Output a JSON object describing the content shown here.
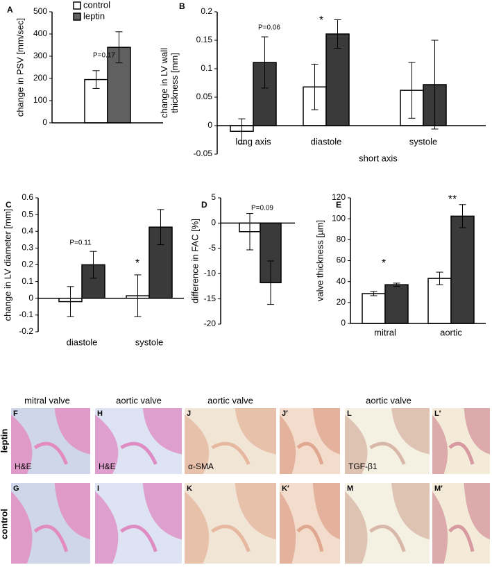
{
  "chart_data": [
    {
      "type": "bar",
      "letter": "A",
      "ytitle": [
        "change in PSV [mm/sec]"
      ],
      "categories": [
        null
      ],
      "series": [
        {
          "name": "control",
          "color": "#ffffff",
          "values": [
            195
          ],
          "errors": [
            40
          ]
        },
        {
          "name": "leptin",
          "color": "#606060",
          "values": [
            340
          ],
          "errors": [
            70
          ]
        }
      ],
      "ylim": [
        0,
        500
      ],
      "yticks": [
        0,
        100,
        200,
        300,
        400,
        500
      ],
      "annotations": [
        "P=0.17"
      ],
      "legend": "top"
    },
    {
      "type": "bar",
      "letter": "B",
      "ytitle": [
        "change  in LV wall",
        "thickness [mm]"
      ],
      "categories": [
        "long axis",
        "diastole",
        "systole"
      ],
      "group_label": "short axis",
      "series": [
        {
          "color": "#ffffff",
          "values": [
            -0.01,
            0.068,
            0.062
          ],
          "errors": [
            0.022,
            0.04,
            0.049
          ]
        },
        {
          "color": "#3a3a3a",
          "values": [
            0.111,
            0.161,
            0.072
          ],
          "errors": [
            0.045,
            0.025,
            0.078
          ]
        }
      ],
      "ylim": [
        -0.05,
        0.2
      ],
      "yticks": [
        -0.05,
        0,
        0.05,
        0.1,
        0.15,
        0.2
      ],
      "annotations": [
        "P=0.06",
        "*"
      ]
    },
    {
      "type": "bar",
      "letter": "C",
      "ytitle": [
        "change  in LV diameter [mm]"
      ],
      "categories": [
        "diastole",
        "systole"
      ],
      "series": [
        {
          "color": "#ffffff",
          "values": [
            -0.02,
            0.015
          ],
          "errors": [
            0.09,
            0.125
          ]
        },
        {
          "color": "#3a3a3a",
          "values": [
            0.2,
            0.425
          ],
          "errors": [
            0.08,
            0.105
          ]
        }
      ],
      "ylim": [
        -0.2,
        0.6
      ],
      "yticks": [
        -0.2,
        -0.1,
        0,
        0.1,
        0.2,
        0.3,
        0.4,
        0.5,
        0.6
      ],
      "annotations": [
        "P=0.11",
        "*"
      ]
    },
    {
      "type": "bar",
      "letter": "D",
      "ytitle": [
        "difference in FAC [%]"
      ],
      "categories": [
        null
      ],
      "series": [
        {
          "color": "#ffffff",
          "values": [
            -1.7
          ],
          "errors": [
            3.6
          ]
        },
        {
          "color": "#3a3a3a",
          "values": [
            -11.8
          ],
          "errors": [
            4.3
          ]
        }
      ],
      "ylim": [
        -20,
        5
      ],
      "yticks": [
        -20,
        -15,
        -10,
        -5,
        0,
        5
      ],
      "annotations": [
        "P=0.09"
      ]
    },
    {
      "type": "bar",
      "letter": "E",
      "ytitle": [
        "valve thickness [µm]"
      ],
      "categories": [
        "mitral",
        "aortic"
      ],
      "series": [
        {
          "color": "#ffffff",
          "values": [
            28.5,
            43
          ],
          "errors": [
            2,
            6
          ]
        },
        {
          "color": "#3a3a3a",
          "values": [
            37,
            102.5
          ],
          "errors": [
            1.5,
            11
          ]
        }
      ],
      "ylim": [
        0,
        120
      ],
      "yticks": [
        0,
        20,
        40,
        60,
        80,
        100,
        120
      ],
      "annotations": [
        "*",
        "**"
      ]
    }
  ],
  "histology": {
    "columns": [
      "mitral valve",
      "aortic valve",
      "aortic valve",
      "aortic valve"
    ],
    "rows": [
      "leptin",
      "control"
    ],
    "panels": [
      {
        "letter": "F",
        "stain": "H&E"
      },
      {
        "letter": "H",
        "stain": "H&E"
      },
      {
        "letter": "J",
        "stain": "α-SMA"
      },
      {
        "letter": "J′"
      },
      {
        "letter": "L",
        "stain": "TGF-β1"
      },
      {
        "letter": "L′"
      },
      {
        "letter": "G"
      },
      {
        "letter": "I"
      },
      {
        "letter": "K"
      },
      {
        "letter": "K′"
      },
      {
        "letter": "M"
      },
      {
        "letter": "M′"
      }
    ]
  }
}
